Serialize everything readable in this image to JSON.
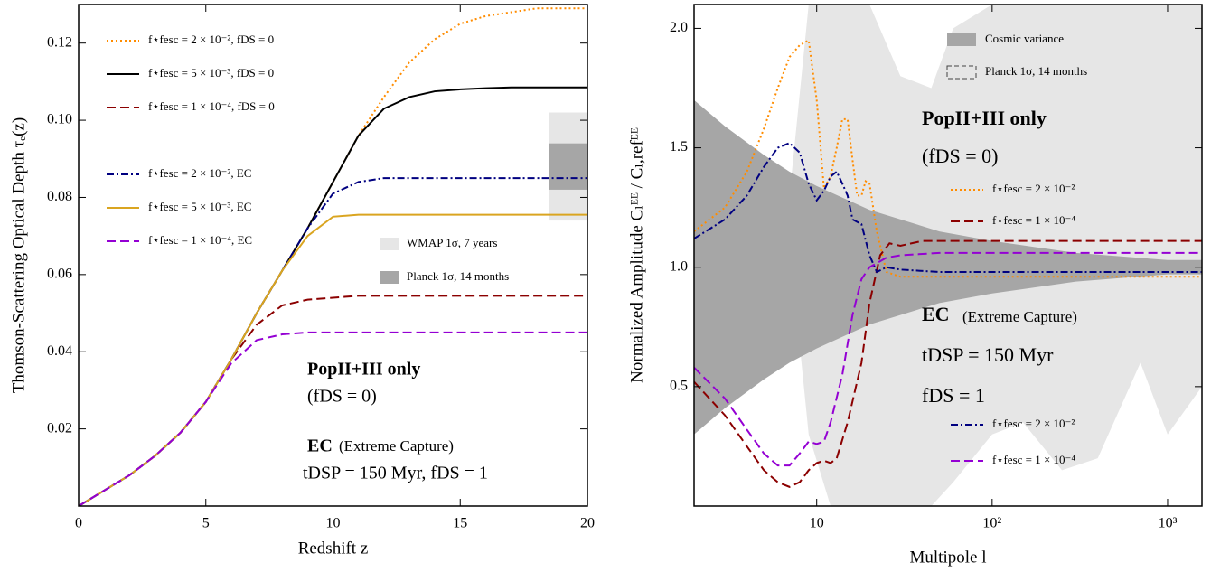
{
  "chart_data": [
    {
      "type": "line",
      "xlabel": "Redshift z",
      "ylabel": "Thomson-Scattering Optical Depth τₑ(z)",
      "xlim": [
        0,
        20
      ],
      "ylim": [
        0,
        0.13
      ],
      "xticks": [
        0,
        5,
        10,
        15,
        20
      ],
      "yticks": [
        0.02,
        0.04,
        0.06,
        {
          "value": 0.1,
          "label": "0.10"
        },
        0.12,
        0.08
      ],
      "series": [
        {
          "name": "f⋆fesc = 2 × 10⁻², fDS = 0",
          "color": "#ff8c00",
          "dash": "dotted",
          "x": [
            0,
            1,
            2,
            3,
            4,
            5,
            6,
            7,
            8,
            9,
            10,
            11,
            12,
            13,
            14,
            15,
            16,
            17,
            18,
            19,
            20
          ],
          "values": [
            0,
            0.004,
            0.008,
            0.013,
            0.019,
            0.027,
            0.038,
            0.05,
            0.061,
            0.072,
            0.084,
            0.096,
            0.106,
            0.115,
            0.121,
            0.125,
            0.127,
            0.128,
            0.129,
            0.129,
            0.129
          ]
        },
        {
          "name": "f⋆fesc = 5 × 10⁻³, fDS = 0",
          "color": "#000000",
          "dash": "solid",
          "x": [
            0,
            1,
            2,
            3,
            4,
            5,
            6,
            7,
            8,
            9,
            10,
            11,
            12,
            13,
            14,
            15,
            16,
            17,
            18,
            19,
            20
          ],
          "values": [
            0,
            0.004,
            0.008,
            0.013,
            0.019,
            0.027,
            0.038,
            0.05,
            0.061,
            0.072,
            0.084,
            0.096,
            0.103,
            0.106,
            0.1075,
            0.108,
            0.1083,
            0.1085,
            0.1085,
            0.1085,
            0.1085
          ]
        },
        {
          "name": "f⋆fesc = 1 × 10⁻⁴, fDS = 0",
          "color": "#8b0000",
          "dash": "dashed",
          "x": [
            0,
            1,
            2,
            3,
            4,
            5,
            6,
            7,
            8,
            9,
            10,
            11,
            12,
            13,
            14,
            15,
            16,
            17,
            18,
            19,
            20
          ],
          "values": [
            0,
            0.004,
            0.008,
            0.013,
            0.019,
            0.027,
            0.038,
            0.047,
            0.052,
            0.0535,
            0.054,
            0.0545,
            0.0545,
            0.0545,
            0.0545,
            0.0545,
            0.0545,
            0.0545,
            0.0545,
            0.0545,
            0.0545
          ]
        },
        {
          "name": "f⋆fesc = 2 × 10⁻², EC",
          "color": "#000080",
          "dash": "dashdot",
          "x": [
            0,
            1,
            2,
            3,
            4,
            5,
            6,
            7,
            8,
            9,
            10,
            11,
            12,
            13,
            14,
            15,
            16,
            17,
            18,
            19,
            20
          ],
          "values": [
            0,
            0.004,
            0.008,
            0.013,
            0.019,
            0.027,
            0.038,
            0.05,
            0.061,
            0.072,
            0.081,
            0.084,
            0.085,
            0.085,
            0.085,
            0.085,
            0.085,
            0.085,
            0.085,
            0.085,
            0.085
          ]
        },
        {
          "name": "f⋆fesc = 5 × 10⁻³, EC",
          "color": "#daa520",
          "dash": "solid",
          "x": [
            0,
            1,
            2,
            3,
            4,
            5,
            6,
            7,
            8,
            9,
            10,
            11,
            12,
            13,
            14,
            15,
            16,
            17,
            18,
            19,
            20
          ],
          "values": [
            0,
            0.004,
            0.008,
            0.013,
            0.019,
            0.027,
            0.038,
            0.05,
            0.061,
            0.07,
            0.075,
            0.0755,
            0.0755,
            0.0755,
            0.0755,
            0.0755,
            0.0755,
            0.0755,
            0.0755,
            0.0755,
            0.0755
          ]
        },
        {
          "name": "f⋆fesc = 1 × 10⁻⁴, EC",
          "color": "#9400d3",
          "dash": "dashed",
          "x": [
            0,
            1,
            2,
            3,
            4,
            5,
            6,
            7,
            8,
            9,
            10,
            11,
            12,
            13,
            14,
            15,
            16,
            17,
            18,
            19,
            20
          ],
          "values": [
            0,
            0.004,
            0.008,
            0.013,
            0.019,
            0.027,
            0.037,
            0.043,
            0.0445,
            0.045,
            0.045,
            0.045,
            0.045,
            0.045,
            0.045,
            0.045,
            0.045,
            0.045,
            0.045,
            0.045,
            0.045
          ]
        }
      ],
      "bands": [
        {
          "name": "WMAP 1σ, 7 years",
          "color": "#e6e6e6",
          "range": [
            0.074,
            0.102
          ]
        },
        {
          "name": "Planck 1σ, 14 months",
          "color": "#a6a6a6",
          "range": [
            0.082,
            0.094
          ]
        }
      ],
      "annotations": [
        "PopII+III only",
        "(fDS = 0)",
        "EC",
        "(Extreme Capture)",
        "tDSP = 150 Myr, fDS = 1"
      ]
    },
    {
      "type": "line",
      "xscale": "log",
      "xlabel": "Multipole l",
      "ylabel": "Normalized Amplitude Cₗᴱᴱ / Cₗ,refᴱᴱ",
      "xlim": [
        2,
        1570
      ],
      "ylim": [
        0,
        2.1
      ],
      "xticks": [
        10,
        {
          "value": 100,
          "label": "10²"
        },
        {
          "value": 1000,
          "label": "10³"
        }
      ],
      "yticks": [
        0.5,
        {
          "value": 1,
          "label": "1.0"
        },
        1.5,
        {
          "value": 2,
          "label": "2.0"
        }
      ],
      "areas": [
        {
          "name": "Planck 1σ, 14 months",
          "color": "#e6e6e6",
          "x": [
            7,
            9,
            12,
            20,
            30,
            45,
            60,
            100,
            150,
            250,
            400,
            700,
            1000,
            1570
          ],
          "lower": [
            1.1,
            0.3,
            0,
            0,
            0,
            0,
            0.1,
            0.3,
            0.35,
            0.15,
            0.2,
            0.6,
            0.3,
            0.5
          ],
          "upper": [
            1.3,
            2.1,
            2.1,
            2.1,
            1.8,
            1.75,
            2,
            2.1,
            2.1,
            2.1,
            2.1,
            2.1,
            2.1,
            2.1
          ]
        },
        {
          "name": "Cosmic variance",
          "color": "#a6a6a6",
          "x": [
            2,
            3,
            5,
            7,
            10,
            20,
            50,
            100,
            300,
            1000,
            1570
          ],
          "lower": [
            0.3,
            0.41,
            0.53,
            0.6,
            0.66,
            0.76,
            0.85,
            0.89,
            0.94,
            0.97,
            0.97
          ],
          "upper": [
            1.7,
            1.59,
            1.47,
            1.4,
            1.34,
            1.24,
            1.15,
            1.11,
            1.06,
            1.03,
            1.03
          ]
        }
      ],
      "series": [
        {
          "name": "f⋆fesc = 2 × 10⁻²",
          "color": "#ff8c00",
          "dash": "dotted",
          "x": [
            2,
            3,
            4,
            5,
            6,
            7,
            8,
            9,
            10,
            11,
            12,
            13,
            14,
            15,
            16,
            17,
            18,
            19,
            20,
            22,
            25,
            30,
            50,
            100,
            1000,
            1570
          ],
          "values": [
            1.15,
            1.25,
            1.4,
            1.58,
            1.75,
            1.88,
            1.93,
            1.95,
            1.7,
            1.33,
            1.38,
            1.5,
            1.62,
            1.62,
            1.45,
            1.3,
            1.3,
            1.36,
            1.35,
            1.15,
            0.98,
            0.96,
            0.96,
            0.96,
            0.96,
            0.96
          ]
        },
        {
          "name": "f⋆fesc = 1 × 10⁻⁴",
          "color": "#8b0000",
          "dash": "dashed",
          "x": [
            2,
            3,
            4,
            5,
            6,
            7,
            8,
            9,
            10,
            11,
            12,
            13,
            15,
            18,
            20,
            23,
            26,
            30,
            40,
            100,
            1570
          ],
          "values": [
            0.52,
            0.38,
            0.25,
            0.15,
            0.1,
            0.08,
            0.1,
            0.15,
            0.18,
            0.19,
            0.18,
            0.2,
            0.35,
            0.6,
            0.85,
            1.05,
            1.1,
            1.09,
            1.11,
            1.11,
            1.11
          ]
        },
        {
          "name": "f⋆fesc = 2 × 10⁻²",
          "color": "#000080",
          "dash": "dashdot",
          "x": [
            2,
            3,
            4,
            5,
            6,
            7,
            8,
            9,
            10,
            11,
            12,
            13,
            14,
            15,
            16,
            18,
            20,
            22,
            25,
            30,
            50,
            1570
          ],
          "values": [
            1.12,
            1.2,
            1.3,
            1.42,
            1.5,
            1.52,
            1.48,
            1.35,
            1.28,
            1.32,
            1.38,
            1.4,
            1.35,
            1.3,
            1.2,
            1.18,
            1.05,
            0.98,
            1,
            0.99,
            0.98,
            0.98
          ]
        },
        {
          "name": "f⋆fesc = 1 × 10⁻⁴",
          "color": "#9400d3",
          "dash": "dashed",
          "x": [
            2,
            3,
            4,
            5,
            6,
            7,
            8,
            9,
            10,
            11,
            12,
            14,
            16,
            18,
            20,
            25,
            30,
            50,
            1570
          ],
          "values": [
            0.58,
            0.45,
            0.32,
            0.22,
            0.17,
            0.17,
            0.22,
            0.27,
            0.26,
            0.27,
            0.35,
            0.55,
            0.8,
            0.95,
            1,
            1.04,
            1.05,
            1.06,
            1.06
          ]
        }
      ],
      "annotations": [
        "PopII+III only",
        "(fDS = 0)",
        "EC",
        "(Extreme Capture)",
        "tDSP = 150 Myr",
        "fDS = 1"
      ]
    }
  ]
}
